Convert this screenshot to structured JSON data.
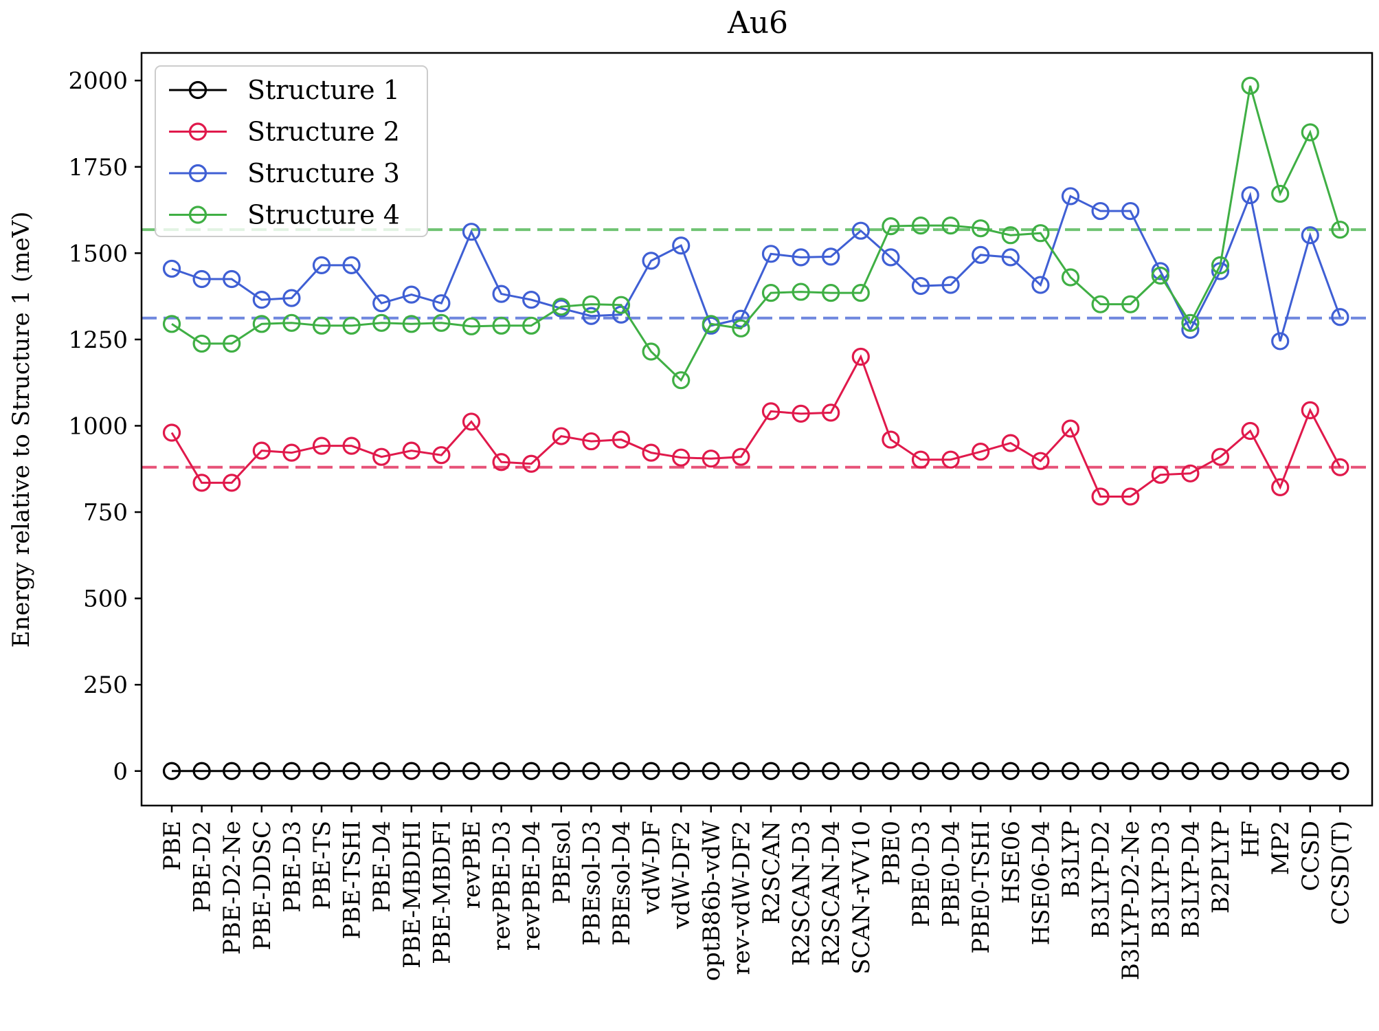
{
  "chart_data": {
    "type": "line",
    "title": "Au6",
    "xlabel": "",
    "ylabel": "Energy relative to Structure 1 (meV)",
    "ylim": [
      -100,
      2080
    ],
    "yticks": [
      0,
      250,
      500,
      750,
      1000,
      1250,
      1500,
      1750,
      2000
    ],
    "grid": false,
    "legend_position": "top-left",
    "categories": [
      "PBE",
      "PBE-D2",
      "PBE-D2-Ne",
      "PBE-DDSC",
      "PBE-D3",
      "PBE-TS",
      "PBE-TSHI",
      "PBE-D4",
      "PBE-MBDHI",
      "PBE-MBDFI",
      "revPBE",
      "revPBE-D3",
      "revPBE-D4",
      "PBEsol",
      "PBEsol-D3",
      "PBEsol-D4",
      "vdW-DF",
      "vdW-DF2",
      "optB86b-vdW",
      "rev-vdW-DF2",
      "R2SCAN",
      "R2SCAN-D3",
      "R2SCAN-D4",
      "SCAN-rVV10",
      "PBE0",
      "PBE0-D3",
      "PBE0-D4",
      "PBE0-TSHI",
      "HSE06",
      "HSE06-D4",
      "B3LYP",
      "B3LYP-D2",
      "B3LYP-D2-Ne",
      "B3LYP-D3",
      "B3LYP-D4",
      "B2PLYP",
      "HF",
      "MP2",
      "CCSD",
      "CCSD(T)"
    ],
    "series": [
      {
        "name": "Structure 1",
        "color": "#000000",
        "values": [
          0,
          0,
          0,
          0,
          0,
          0,
          0,
          0,
          0,
          0,
          0,
          0,
          0,
          0,
          0,
          0,
          0,
          0,
          0,
          0,
          0,
          0,
          0,
          0,
          0,
          0,
          0,
          0,
          0,
          0,
          0,
          0,
          0,
          0,
          0,
          0,
          0,
          0,
          0,
          0
        ]
      },
      {
        "name": "Structure 2",
        "color": "#e0194b",
        "values": [
          980,
          835,
          835,
          928,
          922,
          942,
          942,
          910,
          928,
          915,
          1012,
          895,
          890,
          970,
          955,
          960,
          922,
          908,
          905,
          910,
          1042,
          1035,
          1038,
          1200,
          960,
          902,
          902,
          925,
          950,
          898,
          992,
          795,
          795,
          858,
          862,
          910,
          985,
          822,
          1045,
          880
        ],
        "reference": 880
      },
      {
        "name": "Structure 3",
        "color": "#3f5fd4",
        "values": [
          1455,
          1425,
          1425,
          1365,
          1370,
          1465,
          1465,
          1355,
          1380,
          1355,
          1562,
          1382,
          1365,
          1340,
          1318,
          1322,
          1478,
          1522,
          1290,
          1310,
          1498,
          1488,
          1490,
          1565,
          1488,
          1405,
          1408,
          1495,
          1488,
          1408,
          1665,
          1622,
          1622,
          1448,
          1278,
          1448,
          1668,
          1245,
          1552,
          1315
        ],
        "reference": 1312
      },
      {
        "name": "Structure 4",
        "color": "#3faf44",
        "values": [
          1295,
          1238,
          1238,
          1295,
          1298,
          1290,
          1290,
          1298,
          1295,
          1298,
          1288,
          1290,
          1290,
          1345,
          1352,
          1350,
          1215,
          1132,
          1295,
          1282,
          1385,
          1388,
          1385,
          1385,
          1578,
          1580,
          1580,
          1572,
          1552,
          1558,
          1430,
          1352,
          1352,
          1435,
          1298,
          1465,
          1985,
          1672,
          1850,
          1568
        ],
        "reference": 1568
      }
    ]
  }
}
